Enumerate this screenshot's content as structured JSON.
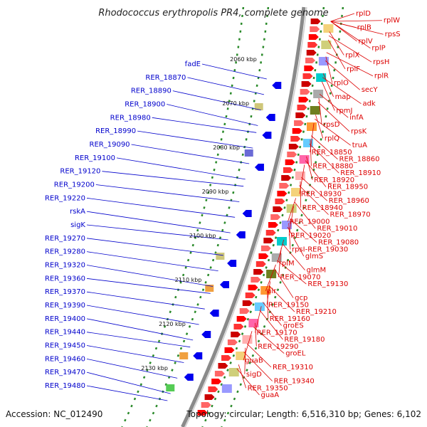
{
  "title": "Rhodococcus erythropolis PR4, complete genome",
  "footer": {
    "accession": "Accession: NC_012490",
    "summary": "Topology: circular; Length: 6,516,310 bp; Genes: 6,102"
  },
  "kbp_markers": [
    "2060 kbp",
    "2070 kbp",
    "2080 kbp",
    "2090 kbp",
    "2100 kbp",
    "2110 kbp",
    "2120 kbp",
    "2130 kbp"
  ],
  "genes_outer": [
    "fadE",
    "RER_18870",
    "RER_18890",
    "RER_18900",
    "RER_18980",
    "RER_18990",
    "RER_19090",
    "RER_19100",
    "RER_19120",
    "RER_19200",
    "RER_19220",
    "rskA",
    "sigK",
    "RER_19270",
    "RER_19280",
    "RER_19320",
    "RER_19360",
    "RER_19370",
    "RER_19390",
    "RER_19400",
    "RER_19440",
    "RER_19450",
    "RER_19460",
    "RER_19470",
    "RER_19480"
  ],
  "genes_inner": [
    "rplD",
    "rplW",
    "rplB",
    "rpsS",
    "rplV",
    "rplP",
    "rplX",
    "rpsH",
    "rplF",
    "rplR",
    "rplO",
    "secY",
    "map",
    "adk",
    "rpmJ",
    "infA",
    "rpsD",
    "rpsK",
    "rplQ",
    "truA",
    "RER_18850",
    "RER_18860",
    "RER_18880",
    "RER_18910",
    "RER_18920",
    "RER_18950",
    "RER_18930",
    "RER_18960",
    "RER_18940",
    "RER_18970",
    "RER_19000",
    "RER_19010",
    "RER_19020",
    "RER_19080",
    "rpsI-RER_19030",
    "glmS",
    "rplM",
    "glmM",
    "RER_19070",
    "RER_19130",
    "alr",
    "gcp",
    "RER_19150",
    "RER_19210",
    "RER_19160",
    "groES",
    "RER_19170",
    "RER_19180",
    "RER_19290",
    "groEL",
    "guaB",
    "RER_19310",
    "sigD",
    "RER_19340",
    "RER_19350",
    "guaA"
  ],
  "colors": {
    "outer_label": "#0000cc",
    "inner_label": "#dd0000",
    "backbone": "#8a8a8a",
    "tick": "#2a8a2a"
  }
}
